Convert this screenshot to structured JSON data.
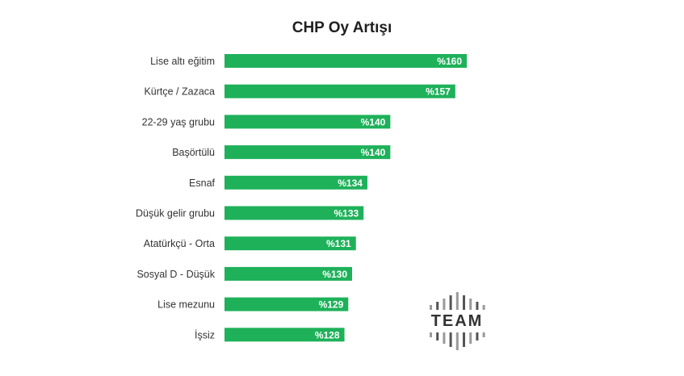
{
  "chart_data": {
    "type": "bar",
    "orientation": "horizontal",
    "title": "CHP Oy Artışı",
    "categories": [
      "Lise altı eğitim",
      "Kürtçe / Zazaca",
      "22-29 yaş grubu",
      "Başörtülü",
      "Esnaf",
      "Düşük gelir grubu",
      "Atatürkçü - Orta",
      "Sosyal D - Düşük",
      "Lise mezunu",
      "İşsiz"
    ],
    "values": [
      160,
      157,
      140,
      140,
      134,
      133,
      131,
      130,
      129,
      128
    ],
    "value_labels": [
      "%160",
      "%157",
      "%140",
      "%140",
      "%134",
      "%133",
      "%131",
      "%130",
      "%129",
      "%128"
    ],
    "bar_color": "#1eb15a",
    "xlim": [
      100,
      160
    ],
    "grid": false,
    "legend": "none"
  },
  "logo": {
    "text": "TEAM",
    "color": "#333333"
  }
}
